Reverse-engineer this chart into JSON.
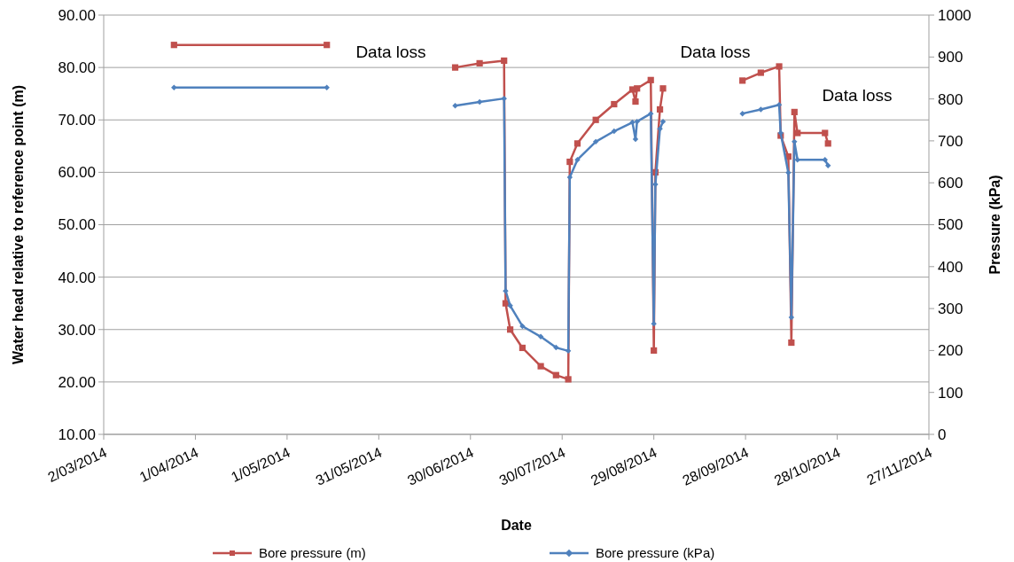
{
  "chart_data": {
    "type": "line",
    "xlabel": "Date",
    "ylabel": "Water head relative to reference point (m)",
    "y2label": "Pressure (kPa)",
    "xlim": [
      "2014-03-02",
      "2014-11-27"
    ],
    "xticks": [
      {
        "value": "2014-03-02",
        "label": "2/03/2014"
      },
      {
        "value": "2014-04-01",
        "label": "1/04/2014"
      },
      {
        "value": "2014-05-01",
        "label": "1/05/2014"
      },
      {
        "value": "2014-05-31",
        "label": "31/05/2014"
      },
      {
        "value": "2014-06-30",
        "label": "30/06/2014"
      },
      {
        "value": "2014-07-30",
        "label": "30/07/2014"
      },
      {
        "value": "2014-08-29",
        "label": "29/08/2014"
      },
      {
        "value": "2014-09-28",
        "label": "28/09/2014"
      },
      {
        "value": "2014-10-28",
        "label": "28/10/2014"
      },
      {
        "value": "2014-11-27",
        "label": "27/11/2014"
      }
    ],
    "ylim": [
      10,
      90
    ],
    "yticks": [
      {
        "value": 10,
        "label": "10.00"
      },
      {
        "value": 20,
        "label": "20.00"
      },
      {
        "value": 30,
        "label": "30.00"
      },
      {
        "value": 40,
        "label": "40.00"
      },
      {
        "value": 50,
        "label": "50.00"
      },
      {
        "value": 60,
        "label": "60.00"
      },
      {
        "value": 70,
        "label": "70.00"
      },
      {
        "value": 80,
        "label": "80.00"
      },
      {
        "value": 90,
        "label": "90.00"
      }
    ],
    "y2lim": [
      0,
      1000
    ],
    "y2ticks": [
      0,
      100,
      200,
      300,
      400,
      500,
      600,
      700,
      800,
      900,
      1000
    ],
    "grid": "y",
    "legend": "bottom",
    "annotations": [
      "Data loss",
      "Data loss",
      "Data loss"
    ],
    "series": [
      {
        "name": "Bore pressure (m)",
        "color": "#c0504d",
        "marker": "square",
        "x": [
          "2014-03-25",
          "2014-05-14",
          "2014-06-01",
          "2014-06-25",
          "2014-07-03",
          "2014-07-11",
          "2014-07-11T12:00",
          "2014-07-13",
          "2014-07-17",
          "2014-07-23",
          "2014-07-28",
          "2014-08-01",
          "2014-08-01T12:00",
          "2014-08-04",
          "2014-08-10",
          "2014-08-16",
          "2014-08-22",
          "2014-08-23",
          "2014-08-23T12:00",
          "2014-08-28",
          "2014-08-29",
          "2014-08-29T12:00",
          "2014-08-31",
          "2014-09-01",
          "2014-09-10",
          "2014-09-27",
          "2014-10-03",
          "2014-10-09",
          "2014-10-09T12:00",
          "2014-10-12",
          "2014-10-13",
          "2014-10-14",
          "2014-10-15",
          "2014-10-24",
          "2014-10-25"
        ],
        "values": [
          84.3,
          84.3,
          null,
          80.0,
          80.8,
          81.3,
          35,
          30,
          26.5,
          23,
          21.3,
          20.5,
          62,
          65.5,
          70,
          73,
          75.8,
          73.5,
          76,
          77.6,
          26,
          60,
          72,
          76,
          null,
          77.5,
          79,
          80.2,
          67,
          63,
          27.5,
          71.5,
          67.5,
          67.5,
          65.5
        ]
      },
      {
        "name": "Bore pressure (kPa)",
        "color": "#4f81bd",
        "marker": "diamond",
        "axis": "y2",
        "x": [
          "2014-03-25",
          "2014-05-14",
          "2014-06-01",
          "2014-06-25",
          "2014-07-03",
          "2014-07-11",
          "2014-07-11T12:00",
          "2014-07-13",
          "2014-07-17",
          "2014-07-23",
          "2014-07-28",
          "2014-08-01",
          "2014-08-01T12:00",
          "2014-08-04",
          "2014-08-10",
          "2014-08-16",
          "2014-08-22",
          "2014-08-23",
          "2014-08-23T12:00",
          "2014-08-28",
          "2014-08-29",
          "2014-08-29T12:00",
          "2014-08-31",
          "2014-09-01",
          "2014-09-10",
          "2014-09-27",
          "2014-10-03",
          "2014-10-09",
          "2014-10-09T12:00",
          "2014-10-12",
          "2014-10-13",
          "2014-10-14",
          "2014-10-15",
          "2014-10-24",
          "2014-10-25"
        ],
        "values": [
          827,
          827,
          null,
          784,
          793,
          801,
          342,
          307,
          258,
          233,
          207,
          199,
          613,
          655,
          698,
          723,
          744,
          704,
          746,
          765,
          264,
          596,
          729,
          746,
          null,
          765,
          775,
          786,
          719,
          624,
          279,
          698,
          655,
          655,
          641
        ]
      }
    ]
  }
}
